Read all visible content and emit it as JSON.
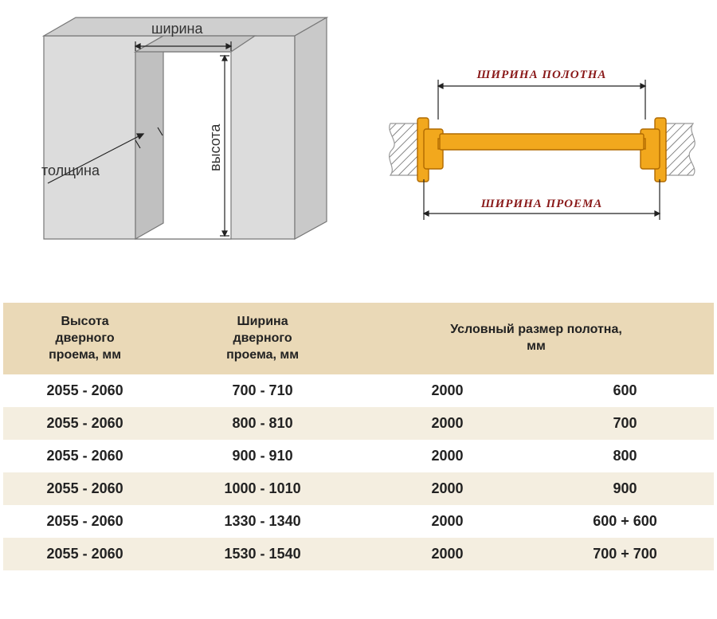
{
  "diagram_left": {
    "label_width": "ширина",
    "label_height": "высота",
    "label_thickness": "толщина",
    "wall_fill": "#dcdcdc",
    "wall_face": "#cfcfcf",
    "wall_side": "#c9c9c9",
    "wall_stroke": "#777777",
    "dim_stroke": "#222222"
  },
  "diagram_right": {
    "label_top": "ШИРИНА ПОЛОТНА",
    "label_bottom": "ШИРИНА ПРОЕМА",
    "door_fill": "#f2a81d",
    "door_stroke": "#b06a00",
    "jamb_stroke": "#999999",
    "hatch_stroke": "#555555",
    "dim_stroke": "#222222",
    "label_color": "#8a1a1a"
  },
  "table": {
    "headers": {
      "h": "Высота\nдверного\nпроема, мм",
      "w": "Ширина\nдверного\nпроема, мм",
      "leaf": "Условный размер полотна,\nмм"
    },
    "header_bg": "#ead9b7",
    "row_alt_bg": "#f4eee0",
    "rows": [
      {
        "h": "2055 - 2060",
        "w": "700 - 710",
        "l1": "2000",
        "l2": "600"
      },
      {
        "h": "2055 - 2060",
        "w": "800 - 810",
        "l1": "2000",
        "l2": "700"
      },
      {
        "h": "2055 - 2060",
        "w": "900 - 910",
        "l1": "2000",
        "l2": "800"
      },
      {
        "h": "2055 - 2060",
        "w": "1000 - 1010",
        "l1": "2000",
        "l2": "900"
      },
      {
        "h": "2055 - 2060",
        "w": "1330 - 1340",
        "l1": "2000",
        "l2": "600 + 600"
      },
      {
        "h": "2055 - 2060",
        "w": "1530 - 1540",
        "l1": "2000",
        "l2": "700 + 700"
      }
    ]
  }
}
